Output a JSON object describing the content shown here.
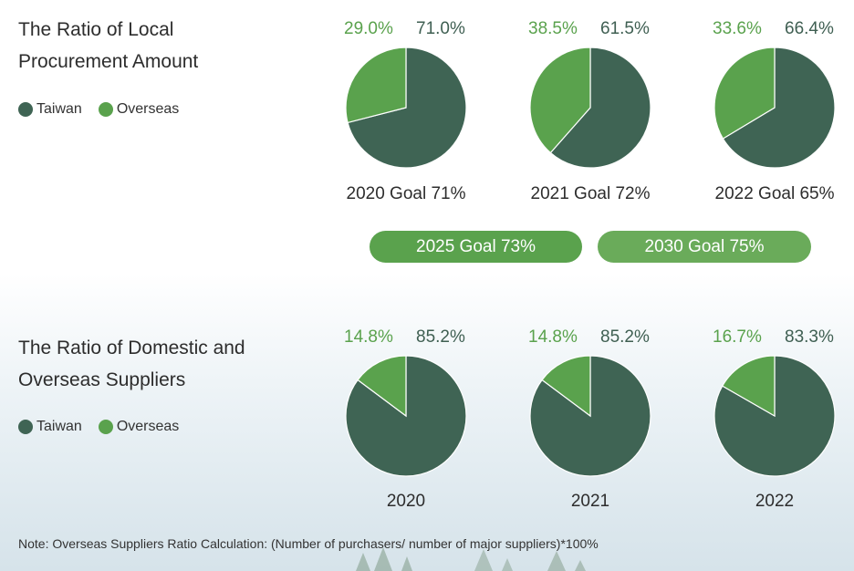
{
  "colors": {
    "taiwan": "#3f6454",
    "overseas": "#5aa24d",
    "pill_2025": "#5aa24d",
    "pill_2030": "#6aab5a"
  },
  "procurement": {
    "title_line1": "The Ratio of Local",
    "title_line2": "Procurement Amount",
    "legend": {
      "taiwan": "Taiwan",
      "overseas": "Overseas"
    },
    "goals": {
      "g2025": "2025  Goal 73%",
      "g2030": "2030  Goal 75%"
    }
  },
  "suppliers": {
    "title_line1": "The Ratio of Domestic and",
    "title_line2": "Overseas Suppliers",
    "legend": {
      "taiwan": "Taiwan",
      "overseas": "Overseas"
    }
  },
  "note": "Note: Overseas Suppliers Ratio Calculation: (Number of purchasers/ number of major suppliers)*100%",
  "chart_data": [
    {
      "type": "pie",
      "title": "The Ratio of Local Procurement Amount",
      "legend": [
        "Taiwan",
        "Overseas"
      ],
      "pies": [
        {
          "year": "2020",
          "caption": "2020 Goal 71%",
          "taiwan": 71.0,
          "overseas": 29.0,
          "taiwan_label": "71.0%",
          "overseas_label": "29.0%"
        },
        {
          "year": "2021",
          "caption": "2021 Goal 72%",
          "taiwan": 61.5,
          "overseas": 38.5,
          "taiwan_label": "61.5%",
          "overseas_label": "38.5%"
        },
        {
          "year": "2022",
          "caption": "2022 Goal 65%",
          "taiwan": 66.4,
          "overseas": 33.6,
          "taiwan_label": "66.4%",
          "overseas_label": "33.6%"
        }
      ]
    },
    {
      "type": "pie",
      "title": "The Ratio of Domestic and Overseas Suppliers",
      "legend": [
        "Taiwan",
        "Overseas"
      ],
      "pies": [
        {
          "year": "2020",
          "caption": "2020",
          "taiwan": 85.2,
          "overseas": 14.8,
          "taiwan_label": "85.2%",
          "overseas_label": "14.8%"
        },
        {
          "year": "2021",
          "caption": "2021",
          "taiwan": 85.2,
          "overseas": 14.8,
          "taiwan_label": "85.2%",
          "overseas_label": "14.8%"
        },
        {
          "year": "2022",
          "caption": "2022",
          "taiwan": 83.3,
          "overseas": 16.7,
          "taiwan_label": "83.3%",
          "overseas_label": "16.7%"
        }
      ]
    }
  ]
}
